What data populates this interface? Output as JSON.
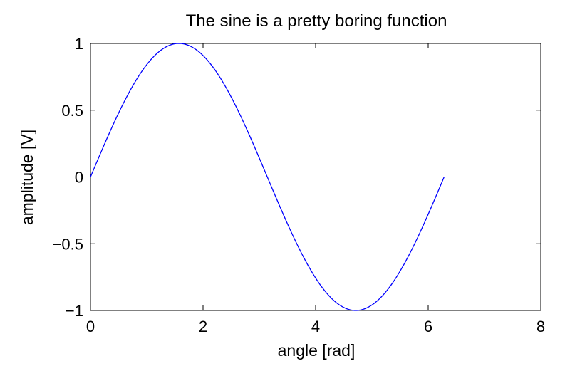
{
  "chart_data": {
    "type": "line",
    "title": "The sine is a pretty boring function",
    "xlabel": "angle [rad]",
    "ylabel": "amplitude [V]",
    "xlim": [
      0,
      8
    ],
    "ylim": [
      -1,
      1
    ],
    "xticks": [
      0,
      2,
      4,
      6,
      8
    ],
    "xtick_labels": [
      "0",
      "2",
      "4",
      "6",
      "8"
    ],
    "yticks": [
      -1,
      -0.5,
      0,
      0.5,
      1
    ],
    "ytick_labels": [
      "−1",
      "−0.5",
      "0",
      "0.5",
      "1"
    ],
    "grid": false,
    "legend": "none",
    "series": [
      {
        "color": "#0000ff",
        "x": [
          0,
          0.2618,
          0.5236,
          0.7854,
          1.0472,
          1.309,
          1.5708,
          1.8326,
          2.0944,
          2.3562,
          2.618,
          2.8798,
          3.1416,
          3.4034,
          3.6652,
          3.927,
          4.1888,
          4.4506,
          4.7124,
          4.9742,
          5.236,
          5.4978,
          5.7596,
          6.0214,
          6.2832
        ],
        "y": [
          0,
          0.2588,
          0.5,
          0.7071,
          0.866,
          0.9659,
          1,
          0.9659,
          0.866,
          0.7071,
          0.5,
          0.2588,
          0,
          -0.2588,
          -0.5,
          -0.7071,
          -0.866,
          -0.9659,
          -1,
          -0.9659,
          -0.866,
          -0.7071,
          -0.5,
          -0.2588,
          0
        ]
      }
    ]
  }
}
